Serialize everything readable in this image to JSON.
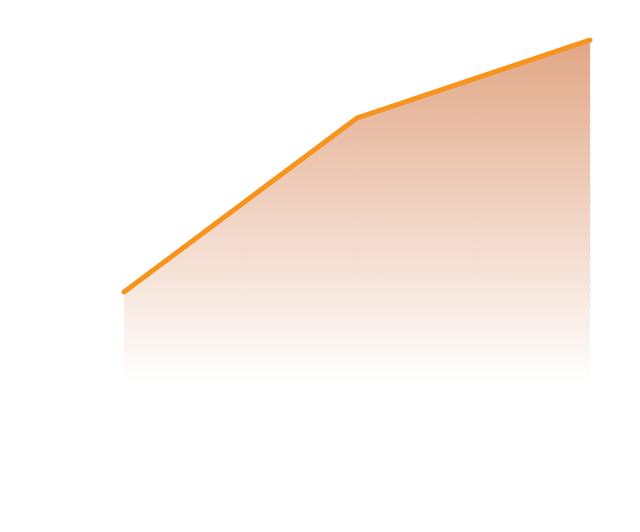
{
  "chart_data": {
    "type": "area",
    "x": [
      1,
      2,
      3,
      4,
      5
    ],
    "values": [
      0.2,
      0.49,
      0.78,
      0.91,
      1.04
    ],
    "ylim": [
      -0.1,
      1.1
    ],
    "grid": "vertical-dashed",
    "colors": {
      "line": "#f7941d",
      "fill_top": "#e0a27f",
      "fill_bottom": "#ffffff",
      "grid": "#e9e2dc"
    }
  }
}
